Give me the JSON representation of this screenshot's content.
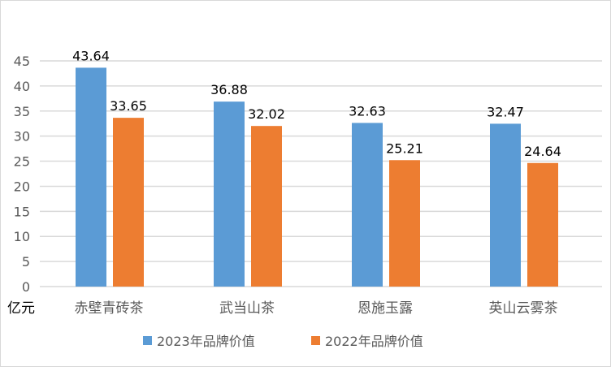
{
  "chart_data": {
    "type": "bar",
    "title": "",
    "xlabel": "",
    "ylabel": "亿元",
    "ylim": [
      0,
      45
    ],
    "yticks": [
      0,
      5,
      10,
      15,
      20,
      25,
      30,
      35,
      40,
      45
    ],
    "grid": true,
    "legend_position": "bottom",
    "categories": [
      "赤壁青砖茶",
      "武当山茶",
      "恩施玉露",
      "英山云雾茶"
    ],
    "series": [
      {
        "name": "2023年品牌价值",
        "color": "#5B9BD5",
        "values": [
          43.64,
          36.88,
          32.63,
          32.47
        ]
      },
      {
        "name": "2022年品牌价值",
        "color": "#ED7D31",
        "values": [
          33.65,
          32.02,
          25.21,
          24.64
        ]
      }
    ]
  }
}
